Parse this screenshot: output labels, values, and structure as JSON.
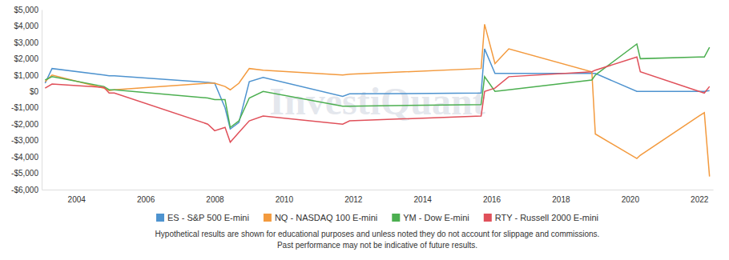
{
  "chart_data": {
    "type": "line",
    "watermark": "InvestiQuant",
    "notes": [
      "Hypothetical results are shown for educational purposes and unless noted they do not account for slippage and commissions.",
      "Past performance may not be indicative of future results."
    ],
    "x": [
      2003.1,
      2003.3,
      2004.8,
      2004.95,
      2005.1,
      2007.8,
      2008.0,
      2008.3,
      2008.45,
      2008.7,
      2009.0,
      2009.4,
      2011.7,
      2011.9,
      2015.7,
      2015.8,
      2016.1,
      2016.5,
      2018.9,
      2019.0,
      2020.2,
      2020.3,
      2022.0,
      2022.15,
      2022.3
    ],
    "series": [
      {
        "name": "ES - S&P 500 E-mini",
        "color": "#4e93cf",
        "values": [
          500,
          1400,
          1000,
          950,
          950,
          550,
          500,
          -1000,
          -2300,
          -1900,
          600,
          850,
          -300,
          -150,
          -100,
          2600,
          1100,
          1100,
          1100,
          1100,
          0,
          0,
          0,
          0,
          50
        ]
      },
      {
        "name": "NQ - NASDAQ 100 E-mini",
        "color": "#f39a3e",
        "values": [
          600,
          1000,
          200,
          50,
          100,
          500,
          500,
          300,
          100,
          500,
          1400,
          1300,
          1000,
          1050,
          1400,
          4100,
          1700,
          2600,
          1200,
          -2600,
          -4100,
          -3900,
          -1500,
          -1300,
          -5200
        ]
      },
      {
        "name": "YM - Dow E-mini",
        "color": "#4caf50",
        "values": [
          700,
          900,
          300,
          100,
          100,
          -400,
          -500,
          -500,
          -2200,
          -1800,
          -400,
          0,
          -900,
          -900,
          -800,
          900,
          0,
          100,
          700,
          1000,
          2900,
          2000,
          2100,
          2100,
          2700
        ]
      },
      {
        "name": "RTY - Russell 2000 E-mini",
        "color": "#e0505a",
        "values": [
          200,
          450,
          250,
          -100,
          -100,
          -2000,
          -2400,
          -2200,
          -3100,
          -2500,
          -1800,
          -1500,
          -2000,
          -1800,
          -1500,
          0,
          200,
          900,
          1200,
          1300,
          2100,
          1200,
          0,
          -100,
          300
        ]
      }
    ],
    "xlim": [
      2003,
      2022.4
    ],
    "xticks": [
      2004,
      2006,
      2008,
      2010,
      2012,
      2014,
      2016,
      2018,
      2020,
      2022
    ],
    "ylim": [
      -6000,
      5000
    ],
    "yticks": [
      {
        "value": -6000,
        "label": "-$6,000"
      },
      {
        "value": -5000,
        "label": "-$5,000"
      },
      {
        "value": -4000,
        "label": "-$4,000"
      },
      {
        "value": -3000,
        "label": "-$3,000"
      },
      {
        "value": -2000,
        "label": "-$2,000"
      },
      {
        "value": -1000,
        "label": "-$1,000"
      },
      {
        "value": 0,
        "label": "$0"
      },
      {
        "value": 1000,
        "label": "$1,000"
      },
      {
        "value": 2000,
        "label": "$2,000"
      },
      {
        "value": 3000,
        "label": "$3,000"
      },
      {
        "value": 4000,
        "label": "$4,000"
      },
      {
        "value": 5000,
        "label": "$5,000"
      }
    ],
    "grid": false,
    "legend": "bottom"
  }
}
